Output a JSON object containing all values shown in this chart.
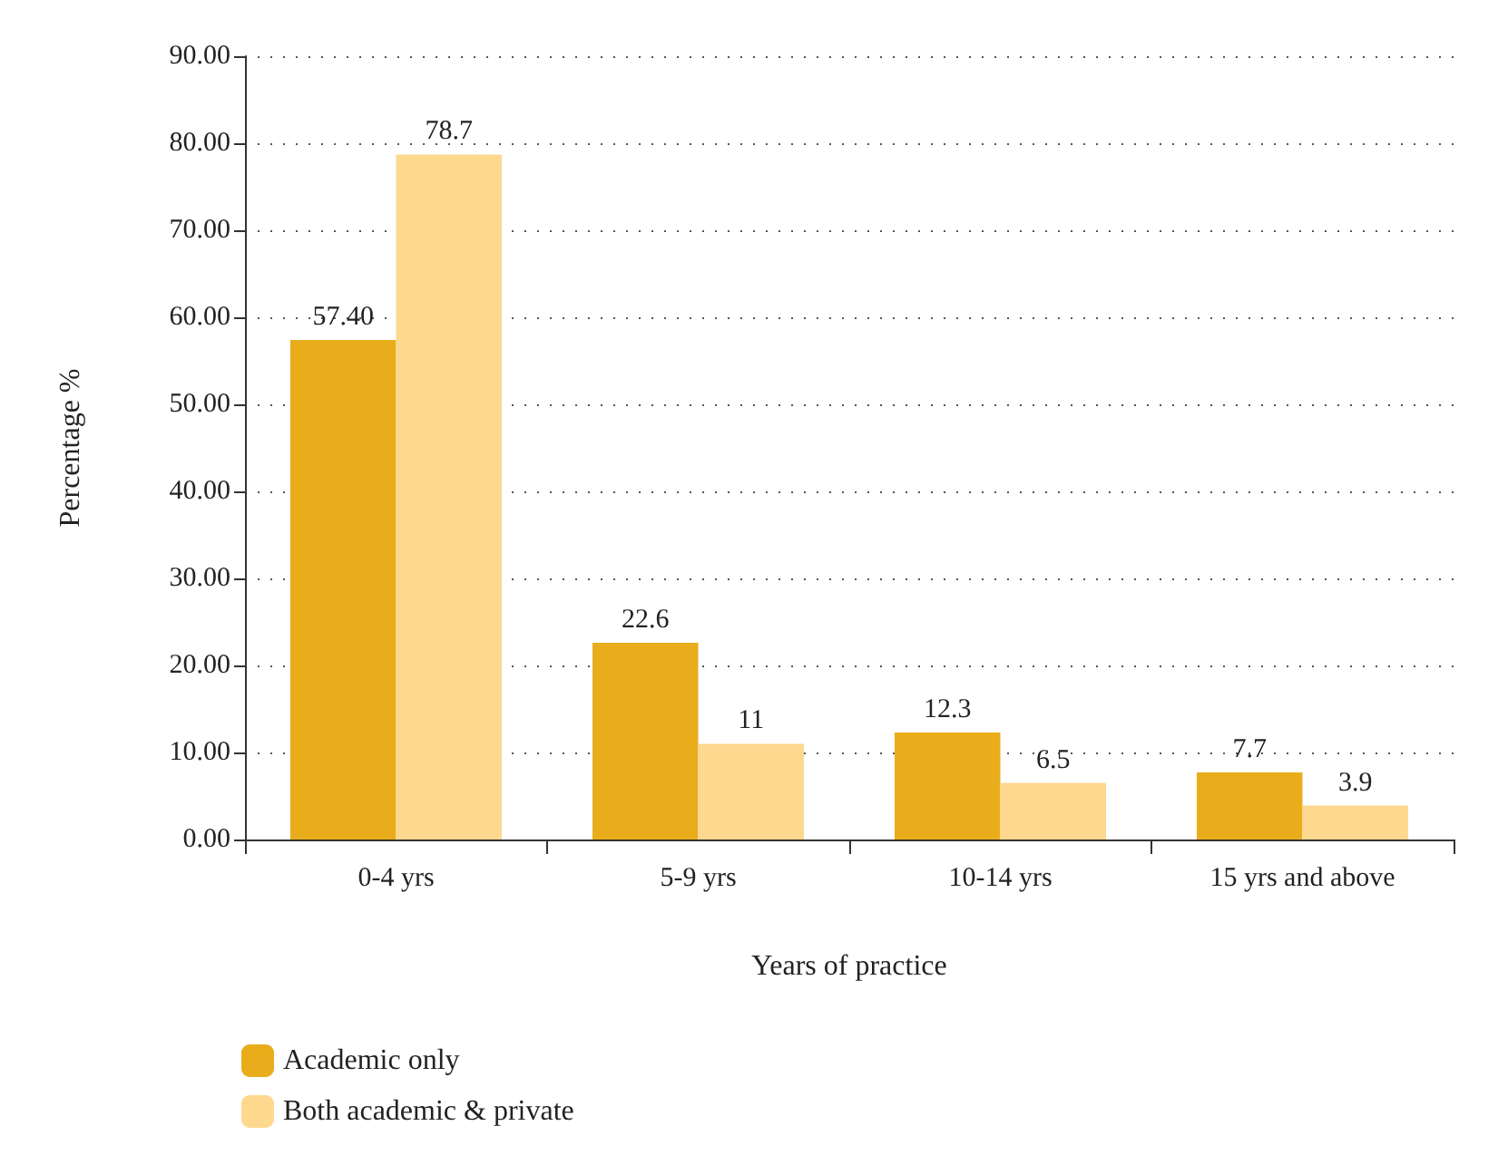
{
  "chart_data": {
    "type": "bar",
    "xlabel": "Years of practice",
    "ylabel": "Percentage %",
    "categories": [
      "0-4 yrs",
      "5-9 yrs",
      "10-14 yrs",
      "15 yrs and above"
    ],
    "series": [
      {
        "name": "Academic only",
        "color": "#e9ad1c",
        "values": [
          57.4,
          22.6,
          12.3,
          7.7
        ],
        "value_labels": [
          "57.40",
          "22.6",
          "12.3",
          "7.7"
        ]
      },
      {
        "name": "Both academic & private",
        "color": "#fdd88f",
        "values": [
          78.7,
          11,
          6.5,
          3.9
        ],
        "value_labels": [
          "78.7",
          "11",
          "6.5",
          "3.9"
        ]
      }
    ],
    "ylim": [
      0,
      90
    ],
    "yticks": [
      {
        "value": 0,
        "label": "0.00"
      },
      {
        "value": 10,
        "label": "10.00"
      },
      {
        "value": 20,
        "label": "20.00"
      },
      {
        "value": 30,
        "label": "30.00"
      },
      {
        "value": 40,
        "label": "40.00"
      },
      {
        "value": 50,
        "label": "50.00"
      },
      {
        "value": 60,
        "label": "60.00"
      },
      {
        "value": 70,
        "label": "70.00"
      },
      {
        "value": 80,
        "label": "80.00"
      },
      {
        "value": 90,
        "label": "90.00"
      }
    ],
    "grid": "y",
    "legend": "bottom left"
  }
}
